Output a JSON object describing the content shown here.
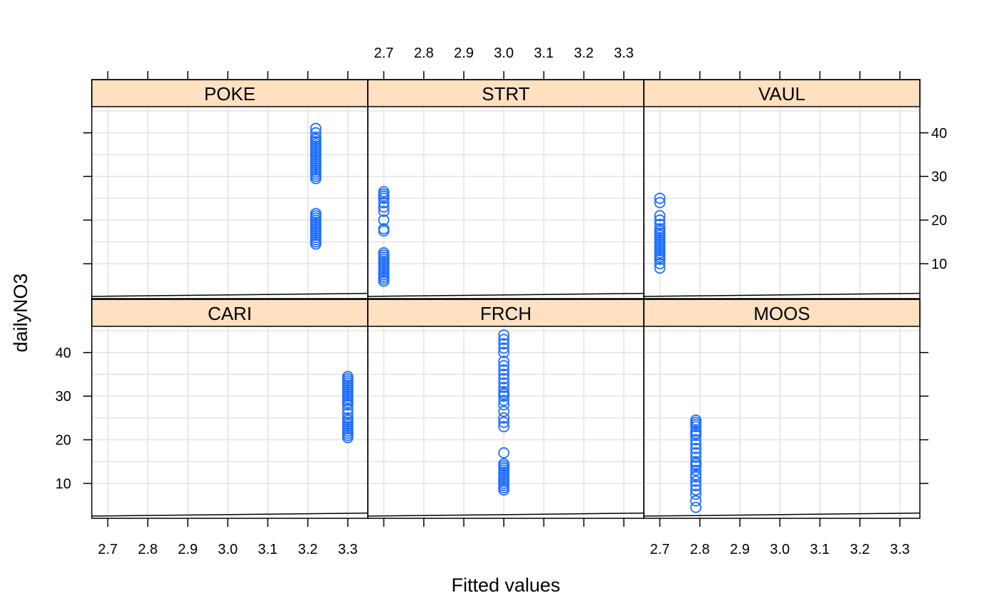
{
  "chart_data": {
    "type": "scatter",
    "layout": "trellis 3x2",
    "xlabel": "Fitted values",
    "ylabel": "dailyNO3",
    "xlim": [
      2.66,
      3.35
    ],
    "ylim": [
      2.0,
      46.0
    ],
    "x_ticks": [
      "2.7",
      "2.8",
      "2.9",
      "3.0",
      "3.1",
      "3.2",
      "3.3"
    ],
    "y_ticks": [
      "10",
      "20",
      "30",
      "40"
    ],
    "grid": true,
    "colors": {
      "points": "#1f6fff",
      "strip": "#ffe0c1",
      "grid": "#e3e3e3"
    },
    "panels": [
      {
        "name": "POKE",
        "row": "top",
        "col": 0,
        "fit_line": [
          2.5,
          3.2
        ],
        "x": 3.22,
        "y": [
          14.5,
          15,
          15.5,
          16,
          16.5,
          17,
          17.5,
          18,
          18.5,
          19,
          19.5,
          20,
          20.5,
          21,
          21.5,
          29.5,
          30,
          30.5,
          31,
          31.5,
          32,
          32.5,
          33,
          33.5,
          34,
          34.5,
          35,
          35.5,
          36,
          36.5,
          37,
          37.5,
          38,
          38.5,
          39,
          40,
          41
        ]
      },
      {
        "name": "STRT",
        "row": "top",
        "col": 1,
        "fit_line": [
          2.5,
          3.2
        ],
        "x": 2.7,
        "y": [
          6,
          6.5,
          7,
          7.5,
          8,
          8.5,
          9,
          9.5,
          10,
          10.5,
          11,
          11.5,
          12,
          12.5,
          17.5,
          18,
          20,
          22,
          23,
          24,
          25,
          25.5,
          26,
          26.5
        ]
      },
      {
        "name": "VAUL",
        "row": "top",
        "col": 2,
        "fit_line": [
          2.5,
          3.2
        ],
        "x": 2.7,
        "y": [
          9,
          10,
          11,
          11.5,
          12,
          12.5,
          13,
          13.5,
          14,
          14.5,
          15,
          15.5,
          16,
          16.5,
          17,
          17.5,
          18,
          19,
          20,
          21,
          24,
          25
        ]
      },
      {
        "name": "CARI",
        "row": "bottom",
        "col": 0,
        "fit_line": [
          2.5,
          3.2
        ],
        "x": 3.3,
        "y": [
          20.5,
          21,
          21.5,
          22,
          22.5,
          23,
          23.5,
          24,
          24.5,
          25,
          26,
          27,
          28,
          28.5,
          29,
          29.5,
          30,
          30.5,
          31,
          31.5,
          32,
          32.5,
          33,
          33.5,
          34,
          34.5
        ]
      },
      {
        "name": "FRCH",
        "row": "bottom",
        "col": 1,
        "fit_line": [
          2.5,
          3.2
        ],
        "x": 3.0,
        "y": [
          8.5,
          9,
          9.5,
          10,
          10.5,
          11,
          11.5,
          12,
          12.5,
          13,
          13.5,
          14,
          14.5,
          17,
          23,
          24,
          25,
          26.5,
          28,
          29,
          30,
          30.5,
          31,
          32,
          33,
          34,
          35,
          36,
          37,
          38,
          40,
          41,
          42,
          43,
          44
        ]
      },
      {
        "name": "MOOS",
        "row": "bottom",
        "col": 2,
        "fit_line": [
          2.5,
          3.2
        ],
        "x": 2.79,
        "y": [
          4.5,
          6,
          7.5,
          8.5,
          9.5,
          10.5,
          11.5,
          12,
          13,
          14,
          14.5,
          15,
          16,
          17,
          18,
          19,
          20,
          21,
          21.5,
          22,
          23,
          23.5,
          24,
          24.5
        ]
      }
    ]
  }
}
